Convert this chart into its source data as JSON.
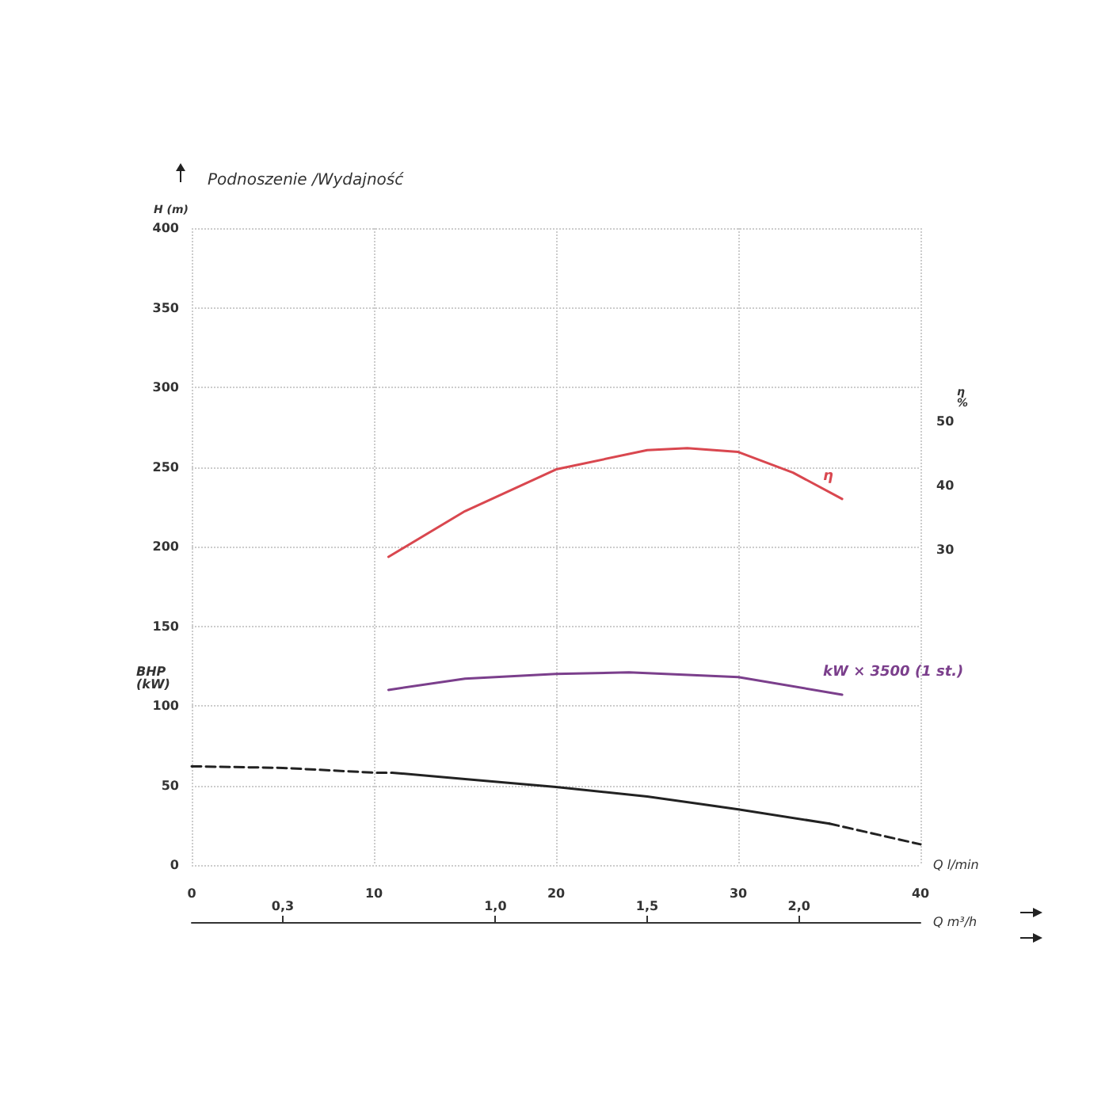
{
  "chart_data": {
    "type": "line",
    "title": "Podnoszenie /Wydajność",
    "xlabel": "Q l/min",
    "x2label": "Q m³/h",
    "ylabel": "H (m)",
    "y2label": "η %",
    "annotations": [
      "BHP (kW)"
    ],
    "xlim": [
      0,
      40
    ],
    "xticks": [
      0,
      10,
      20,
      30,
      40
    ],
    "x2lim": [
      0,
      2.4
    ],
    "x2ticks": [
      {
        "value": 0.3,
        "label": "0,3"
      },
      {
        "value": 1,
        "label": "1,0"
      },
      {
        "value": 1.5,
        "label": "1,5"
      },
      {
        "value": 2,
        "label": "2,0"
      }
    ],
    "ylim": [
      0,
      400
    ],
    "yticks": [
      0,
      50,
      100,
      150,
      200,
      250,
      300,
      350,
      400
    ],
    "y2lim": [
      -19,
      80
    ],
    "y2ticks": [
      30,
      40,
      50
    ],
    "grid": true,
    "legend": false,
    "marker": "none",
    "series": [
      {
        "color": "#222222",
        "line_style": "dashed",
        "x": [
          0,
          5,
          10,
          11
        ],
        "values": [
          62,
          61,
          58,
          58
        ]
      },
      {
        "color": "#222222",
        "line_style": "solid",
        "x": [
          11,
          15,
          20,
          25,
          30,
          35
        ],
        "values": [
          58,
          54,
          49,
          43,
          35,
          26
        ]
      },
      {
        "color": "#222222",
        "line_style": "dashed",
        "x": [
          35,
          40
        ],
        "values": [
          26,
          13
        ]
      },
      {
        "name": "kW × 3500 (1 st.)",
        "color": "#7b3f8c",
        "line_style": "solid",
        "x": [
          10.8,
          15,
          20,
          24,
          30,
          35.7
        ],
        "values": [
          110,
          117,
          120,
          121,
          118,
          107
        ]
      },
      {
        "name": "η",
        "color": "#d9474f",
        "line_style": "solid",
        "axis": "y2",
        "x": [
          10.8,
          15,
          20,
          25,
          27.2,
          30,
          33,
          35.7
        ],
        "values": [
          28.9,
          36,
          42.5,
          45.5,
          45.8,
          45.2,
          42,
          37.9
        ]
      }
    ]
  }
}
